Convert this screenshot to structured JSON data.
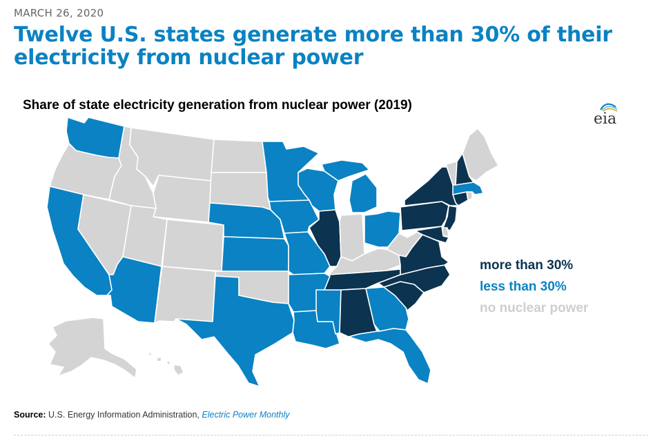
{
  "header": {
    "date": "MARCH 26, 2020",
    "headline": "Twelve U.S. states generate more than 30% of their electricity from nuclear power"
  },
  "map": {
    "title": "Share of state electricity generation from nuclear power (2019)",
    "logo_text": "eia",
    "colors": {
      "more_than_30": "#0c3350",
      "less_than_30": "#0a82c3",
      "no_nuclear": "#d4d4d4"
    },
    "legend": [
      {
        "label": "more than 30%",
        "category": "more_than_30"
      },
      {
        "label": "less than 30%",
        "category": "less_than_30"
      },
      {
        "label": "no nuclear power",
        "category": "no_nuclear"
      }
    ],
    "states": {
      "more_than_30": [
        "NY",
        "PA",
        "NJ",
        "CT",
        "NH",
        "MD",
        "IL",
        "TN",
        "VA",
        "NC",
        "SC",
        "AL"
      ],
      "less_than_30": [
        "WA",
        "CA",
        "AZ",
        "TX",
        "KS",
        "NE",
        "MN",
        "WI",
        "IA",
        "MO",
        "AR",
        "LA",
        "MS",
        "GA",
        "FL",
        "MI",
        "OH",
        "MA"
      ],
      "no_nuclear": [
        "OR",
        "ID",
        "MT",
        "WY",
        "NV",
        "UT",
        "CO",
        "NM",
        "ND",
        "SD",
        "OK",
        "IN",
        "KY",
        "WV",
        "ME",
        "VT",
        "RI",
        "DE",
        "AK",
        "HI"
      ]
    }
  },
  "source": {
    "label": "Source:",
    "text": "U.S. Energy Information Administration,",
    "publication": "Electric Power Monthly"
  }
}
